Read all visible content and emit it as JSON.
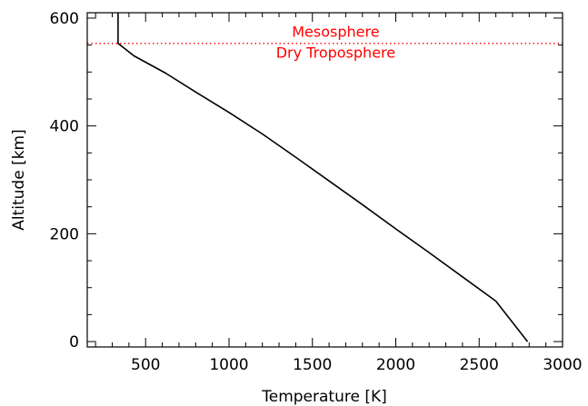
{
  "chart_data": {
    "type": "line",
    "xlabel": "Temperature [K]",
    "ylabel": "Altitude [km]",
    "xlim": [
      150,
      3000
    ],
    "ylim": [
      -10,
      610
    ],
    "x_ticks": [
      500,
      1000,
      1500,
      2000,
      2500,
      3000
    ],
    "y_ticks": [
      0,
      200,
      400,
      600
    ],
    "x_minor_step": 100,
    "y_minor_step": 50,
    "grid": false,
    "series": [
      {
        "color": "#000000",
        "x": [
          335,
          335,
          430,
          620,
          800,
          1000,
          1200,
          1400,
          1600,
          1800,
          2000,
          2200,
          2400,
          2600,
          2790
        ],
        "y": [
          610,
          553,
          530,
          498,
          463,
          425,
          385,
          342,
          298,
          254,
          209,
          165,
          120,
          75,
          0
        ]
      }
    ],
    "annotations": [
      {
        "type": "hline",
        "y": 553,
        "color": "#ff0000",
        "style": "dotted"
      },
      {
        "text": "Mesosphere",
        "x": 1640,
        "y": 565,
        "color": "#ff0000"
      },
      {
        "text": "Dry Troposphere",
        "x": 1640,
        "y": 527,
        "color": "#ff0000"
      }
    ]
  }
}
